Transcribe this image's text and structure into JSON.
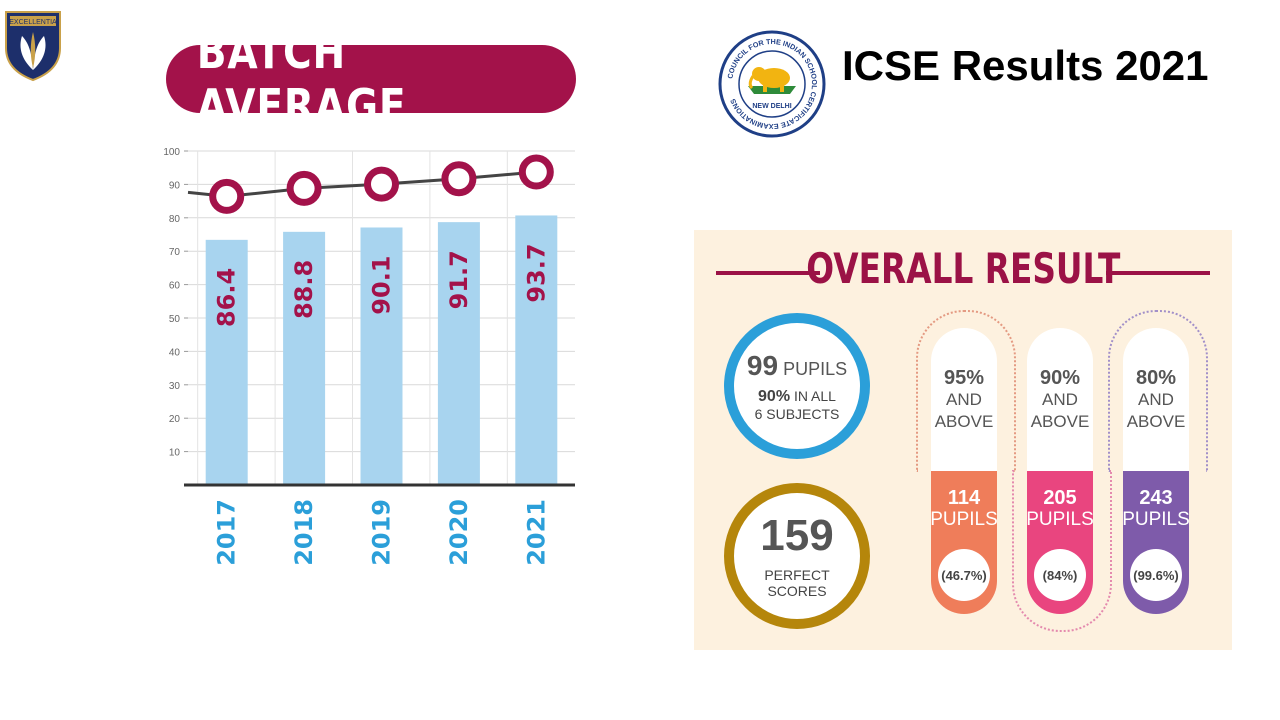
{
  "logo": {
    "banner_text": "EXCELLENTIA"
  },
  "seal": {
    "ring_text": "COUNCIL FOR THE INDIAN SCHOOL CERTIFICATE EXAMINATIONS",
    "city": "NEW DELHI"
  },
  "title": "ICSE Results 2021",
  "batch_title": "BATCH AVERAGE",
  "colors": {
    "maroon": "#a3124a",
    "bar": "#a8d4ef",
    "year": "#2b9fd9",
    "blue_ring": "#2b9fd9",
    "gold_ring": "#b5860b",
    "orange": "#ef7d5a",
    "pink": "#e9457f",
    "purple": "#7e5baa"
  },
  "chart_data": {
    "type": "bar",
    "categories": [
      "2017",
      "2018",
      "2019",
      "2020",
      "2021"
    ],
    "values": [
      86.4,
      88.8,
      90.1,
      91.7,
      93.7
    ],
    "value_labels": [
      "86.4",
      "88.8",
      "90.1",
      "91.7",
      "93.7"
    ],
    "ylim": [
      0,
      100
    ],
    "yticks": [
      10,
      20,
      30,
      40,
      50,
      60,
      70,
      80,
      90,
      100
    ],
    "grid": true,
    "line_overlay": true
  },
  "overall": {
    "title": "OVERALL RESULT",
    "circle1": {
      "count": "99",
      "count_label": "PUPILS",
      "pct": "90%",
      "pct_label": "IN ALL",
      "subjects": "6 SUBJECTS"
    },
    "circle2": {
      "count": "159",
      "line1": "PERFECT",
      "line2": "SCORES"
    },
    "pillars": [
      {
        "pct": "95%",
        "and": "AND",
        "above": "ABOVE",
        "count": "114",
        "pupils": "PUPILS",
        "share": "(46.7%)",
        "color": "#ef7d5a"
      },
      {
        "pct": "90%",
        "and": "AND",
        "above": "ABOVE",
        "count": "205",
        "pupils": "PUPILS",
        "share": "(84%)",
        "color": "#e9457f"
      },
      {
        "pct": "80%",
        "and": "AND",
        "above": "ABOVE",
        "count": "243",
        "pupils": "PUPILS",
        "share": "(99.6%)",
        "color": "#7e5baa"
      }
    ]
  }
}
